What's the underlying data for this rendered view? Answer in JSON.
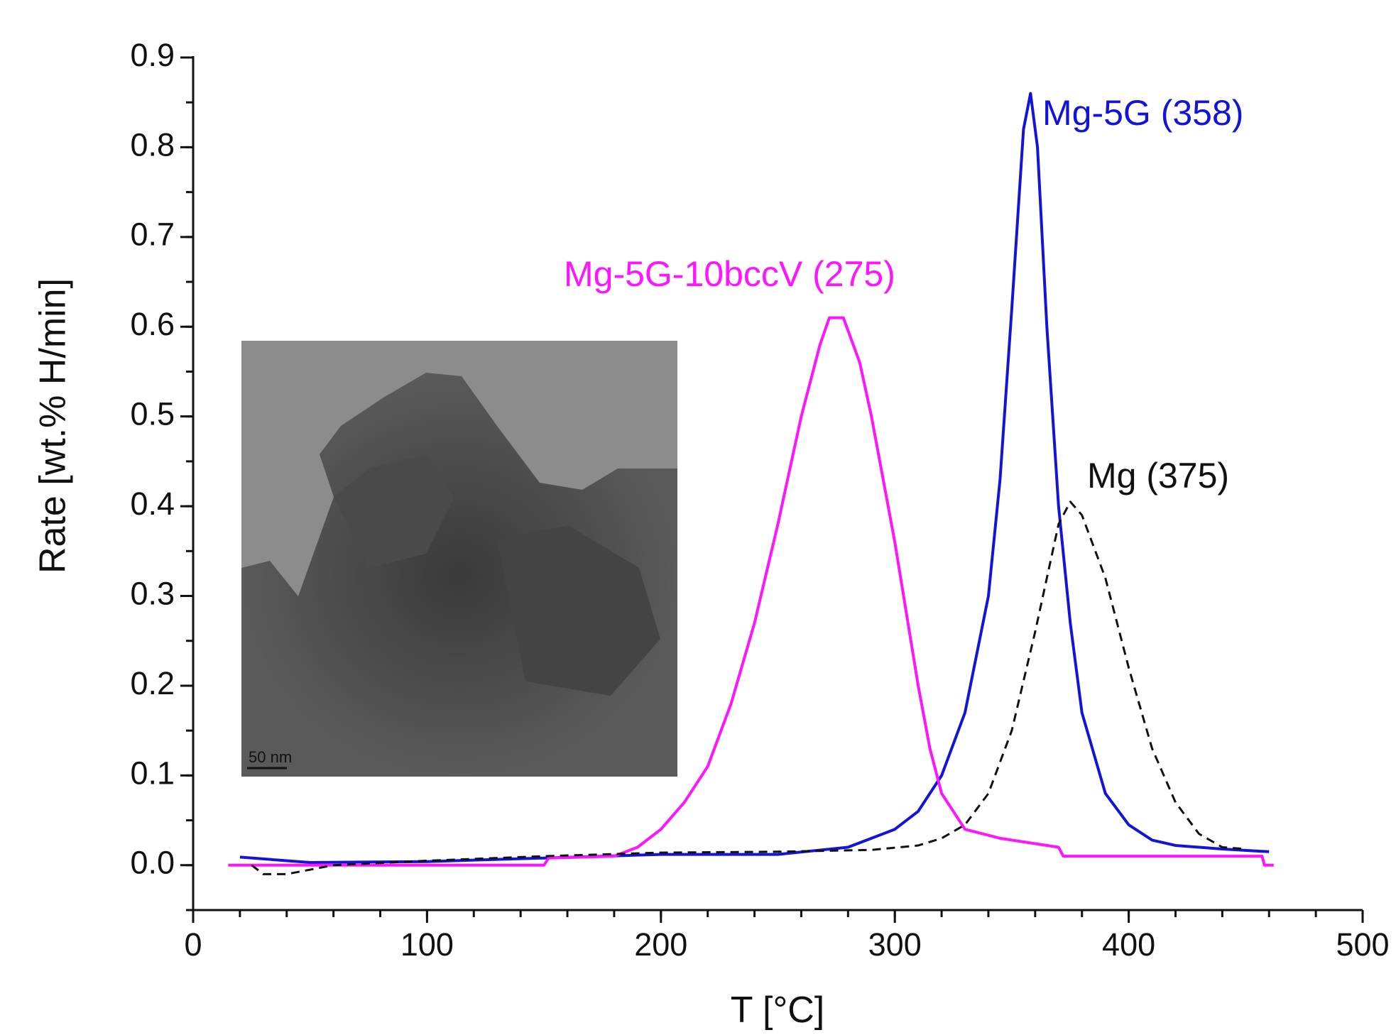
{
  "chart_data": {
    "type": "line",
    "x_label": "T [°C]",
    "y_label": "Rate [wt.% H/min]",
    "xlim": [
      0,
      500
    ],
    "xticks": [
      0,
      100,
      200,
      300,
      400,
      500
    ],
    "ylim": [
      -0.05,
      0.9
    ],
    "yticks": [
      {
        "value": 0,
        "label": "0.0"
      },
      0.1,
      0.2,
      0.3,
      0.4,
      0.5,
      0.6,
      0.7,
      0.8,
      0.9
    ],
    "inset_scale_label": "50 nm",
    "series": [
      {
        "name": "Mg-5G (358)",
        "color": "#1414d8",
        "dashed": false,
        "x": [
          20,
          50,
          100,
          150,
          200,
          250,
          280,
          300,
          310,
          320,
          330,
          340,
          345,
          350,
          355,
          358,
          361,
          365,
          370,
          375,
          380,
          390,
          400,
          410,
          420,
          440,
          460
        ],
        "values": [
          0.009,
          0.003,
          0.004,
          0.008,
          0.012,
          0.012,
          0.02,
          0.04,
          0.06,
          0.1,
          0.17,
          0.3,
          0.43,
          0.62,
          0.82,
          0.86,
          0.8,
          0.6,
          0.4,
          0.27,
          0.17,
          0.08,
          0.045,
          0.028,
          0.022,
          0.018,
          0.015
        ]
      },
      {
        "name": "Mg-5G-10bccV (275)",
        "color": "#ff14ff",
        "dashed": false,
        "x": [
          15,
          150,
          152,
          180,
          190,
          200,
          210,
          220,
          230,
          240,
          250,
          260,
          268,
          272,
          278,
          285,
          290,
          300,
          310,
          315,
          320,
          330,
          345,
          370,
          372,
          457,
          458,
          462
        ],
        "values": [
          0.0,
          0.0,
          0.008,
          0.01,
          0.02,
          0.04,
          0.07,
          0.11,
          0.18,
          0.27,
          0.38,
          0.5,
          0.58,
          0.61,
          0.61,
          0.56,
          0.5,
          0.36,
          0.2,
          0.13,
          0.08,
          0.04,
          0.03,
          0.02,
          0.01,
          0.01,
          0.0,
          0.0
        ]
      },
      {
        "name": "Mg (375)",
        "color": "#111111",
        "dashed": true,
        "x": [
          25,
          30,
          40,
          60,
          100,
          150,
          200,
          250,
          290,
          310,
          320,
          330,
          340,
          350,
          360,
          365,
          370,
          375,
          380,
          390,
          400,
          410,
          420,
          430,
          440,
          450
        ],
        "values": [
          0.0,
          -0.01,
          -0.01,
          0.0,
          0.005,
          0.01,
          0.014,
          0.015,
          0.017,
          0.022,
          0.03,
          0.045,
          0.08,
          0.15,
          0.26,
          0.32,
          0.38,
          0.405,
          0.39,
          0.32,
          0.22,
          0.13,
          0.07,
          0.035,
          0.02,
          0.018
        ]
      }
    ]
  }
}
